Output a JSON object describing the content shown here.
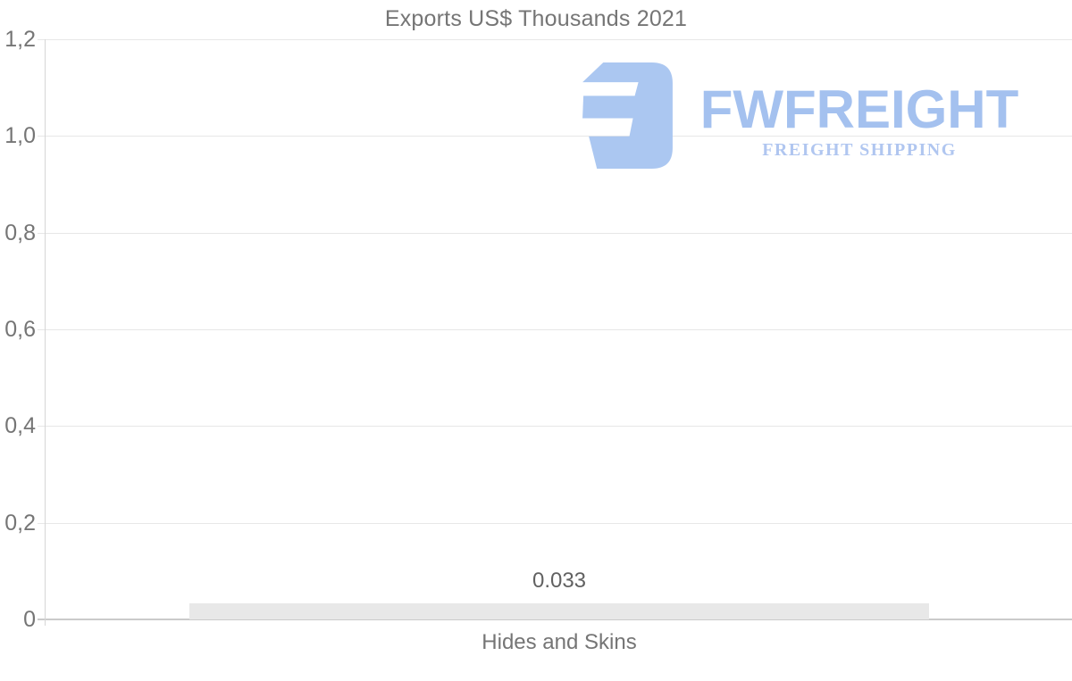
{
  "chart_data": {
    "type": "bar",
    "title": "Exports US$ Thousands 2021",
    "categories": [
      "Hides and Skins"
    ],
    "values": [
      0.033
    ],
    "value_labels": [
      "0.033"
    ],
    "xlabel": "",
    "ylabel": "",
    "ylim": [
      0,
      1.2
    ],
    "ytick_values": [
      1.2,
      1.0,
      0.8,
      0.6,
      0.4,
      0.2,
      0
    ],
    "ytick_labels": [
      "1,2",
      "1,0",
      "0,8",
      "0,6",
      "0,4",
      "0,2",
      "0"
    ],
    "grid": "horizontal",
    "legend": "none",
    "bar_orientation": "vertical",
    "bar_color": "#e8e8e8"
  },
  "watermark": {
    "brand": "FWFREIGHT",
    "tagline": "FREIGHT SHIPPING",
    "mark": "fwfreight-logo-mark",
    "brand_color": "#a4c1ef",
    "tagline_color": "#b0c6f0",
    "mark_color": "#abc7f1"
  },
  "colors": {
    "background": "#ffffff",
    "text": "#757575",
    "value_text": "#616161",
    "gridline": "#e7e7e7",
    "axis_line": "#cbcbcb",
    "bar": "#e8e8e8"
  }
}
